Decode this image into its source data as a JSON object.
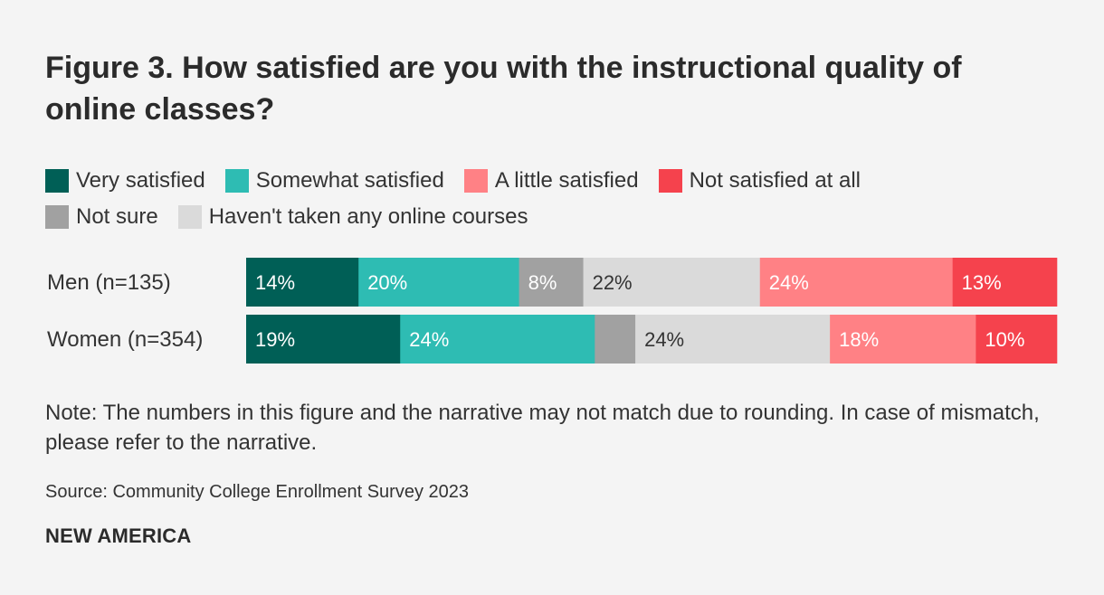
{
  "title": "Figure 3. How satisfied are you with the instructional quality of online classes?",
  "note": "Note: The numbers in this figure and the narrative may not match due to rounding. In case of mismatch, please refer to the narrative.",
  "source": "Source: Community College Enrollment Survey 2023",
  "brand": "NEW AMERICA",
  "colors": {
    "very_satisfied": "#005f56",
    "somewhat_satisfied": "#2ebcb3",
    "not_sure": "#a1a1a1",
    "havent_taken": "#dadada",
    "a_little_satisfied": "#ff8185",
    "not_satisfied": "#f5424d"
  },
  "legend": {
    "rows": [
      [
        {
          "label": "Very satisfied",
          "color": "#005f56"
        },
        {
          "label": "Somewhat satisfied",
          "color": "#2ebcb3"
        },
        {
          "label": "A little satisfied",
          "color": "#ff8185"
        },
        {
          "label": "Not satisfied at all",
          "color": "#f5424d"
        }
      ],
      [
        {
          "label": "Not sure",
          "color": "#a1a1a1"
        },
        {
          "label": "Haven't taken any online courses",
          "color": "#dadada"
        }
      ]
    ]
  },
  "chart_data": {
    "type": "bar",
    "orientation": "horizontal",
    "stacked": true,
    "normalized": true,
    "categories": [
      "Men (n=135)",
      "Women (n=354)"
    ],
    "series": [
      {
        "name": "Very satisfied",
        "color": "#005f56",
        "label_color": "#ffffff",
        "values": [
          14,
          19
        ],
        "labels": [
          "14%",
          "19%"
        ]
      },
      {
        "name": "Somewhat satisfied",
        "color": "#2ebcb3",
        "label_color": "#ffffff",
        "values": [
          20,
          24
        ],
        "labels": [
          "20%",
          "24%"
        ]
      },
      {
        "name": "Not sure",
        "color": "#a1a1a1",
        "label_color": "#ffffff",
        "values": [
          8,
          5
        ],
        "labels": [
          "8%",
          ""
        ]
      },
      {
        "name": "Haven't taken any online courses",
        "color": "#dadada",
        "label_color": "#333333",
        "values": [
          22,
          24
        ],
        "labels": [
          "22%",
          "24%"
        ]
      },
      {
        "name": "A little satisfied",
        "color": "#ff8185",
        "label_color": "#ffffff",
        "values": [
          24,
          18
        ],
        "labels": [
          "24%",
          "18%"
        ]
      },
      {
        "name": "Not satisfied at all",
        "color": "#f5424d",
        "label_color": "#ffffff",
        "values": [
          13,
          10
        ],
        "labels": [
          "13%",
          "10%"
        ]
      }
    ],
    "grid": false,
    "legend_position": "top"
  }
}
